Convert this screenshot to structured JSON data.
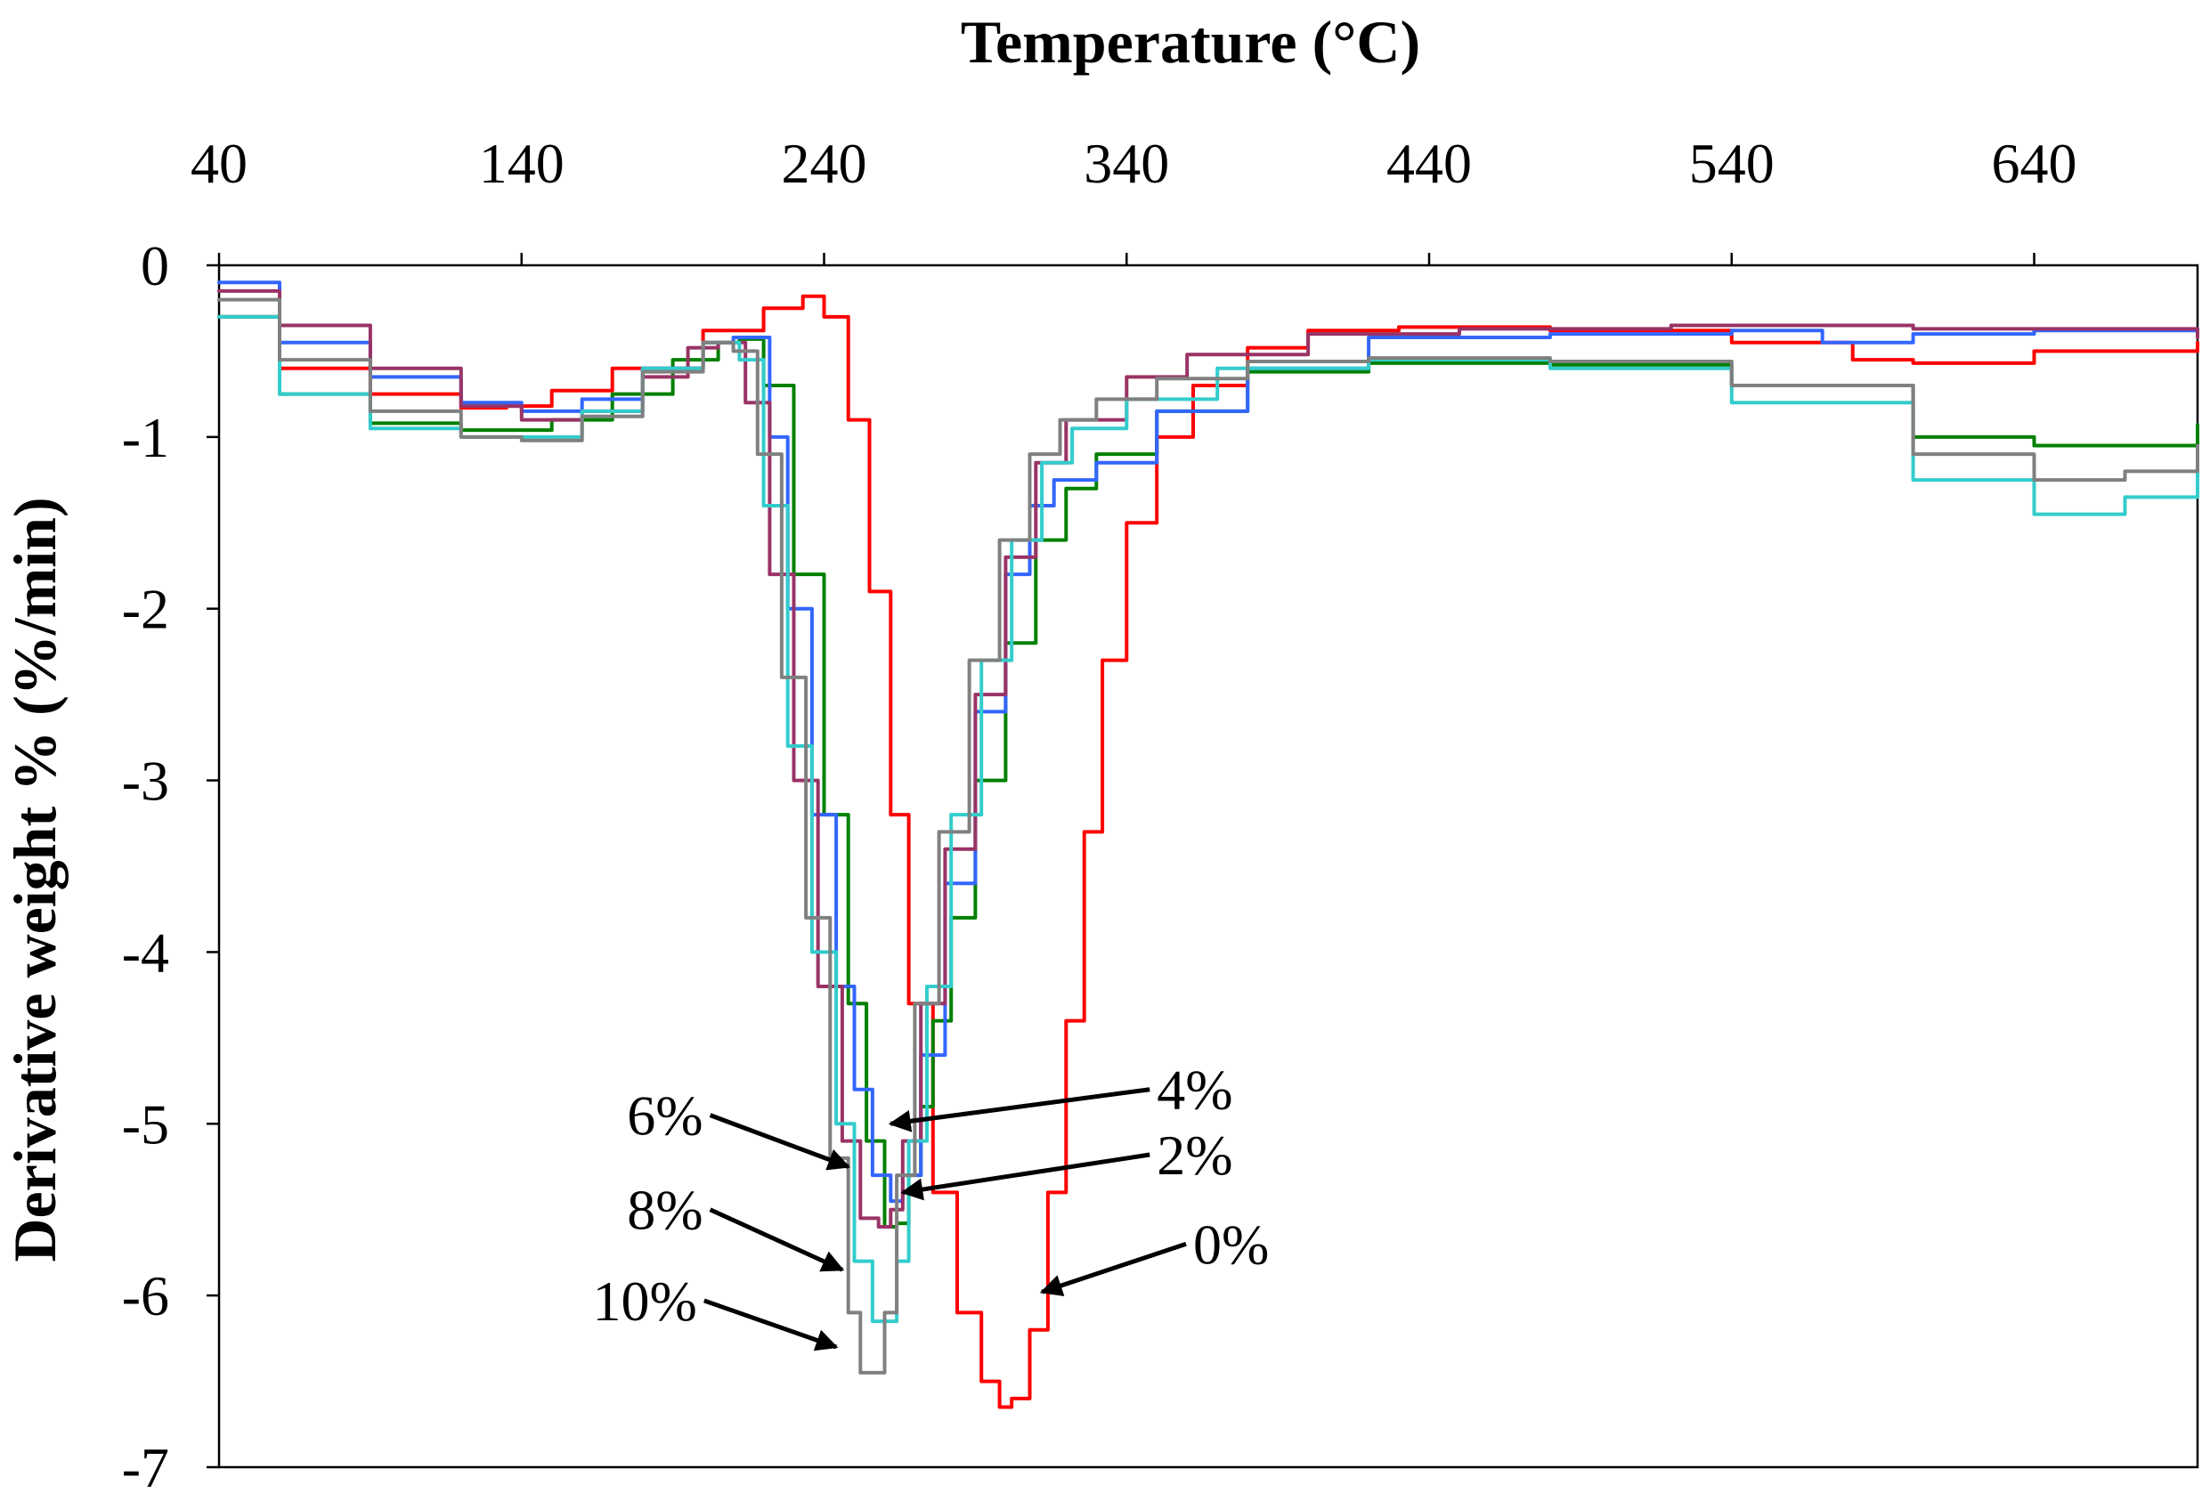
{
  "chart_data": {
    "type": "line",
    "title": "",
    "xlabel": "Temperature (°C)",
    "ylabel": "Derivative weight % (%/min)",
    "xlim": [
      40,
      694
    ],
    "ylim": [
      -7,
      0
    ],
    "x_axis_position": "top",
    "grid": false,
    "x_ticks": [
      40,
      140,
      240,
      340,
      440,
      540,
      640
    ],
    "y_ticks": [
      0,
      -1,
      -2,
      -3,
      -4,
      -5,
      -6,
      -7
    ],
    "series": [
      {
        "name": "0%",
        "color": "#ff0000",
        "x": [
          40,
          60,
          90,
          120,
          135,
          150,
          170,
          200,
          220,
          233,
          240,
          248,
          255,
          262,
          268,
          276,
          284,
          292,
          298,
          302,
          308,
          314,
          320,
          326,
          332,
          340,
          350,
          362,
          380,
          400,
          430,
          480,
          540,
          580,
          600,
          640,
          694
        ],
        "y": [
          -0.3,
          -0.6,
          -0.75,
          -0.83,
          -0.82,
          -0.73,
          -0.6,
          -0.38,
          -0.25,
          -0.18,
          -0.3,
          -0.9,
          -1.9,
          -3.2,
          -4.3,
          -5.4,
          -6.1,
          -6.5,
          -6.65,
          -6.6,
          -6.2,
          -5.4,
          -4.4,
          -3.3,
          -2.3,
          -1.5,
          -1.0,
          -0.7,
          -0.48,
          -0.38,
          -0.36,
          -0.38,
          -0.45,
          -0.55,
          -0.57,
          -0.5,
          -0.45
        ]
      },
      {
        "name": "2%",
        "color": "#008000",
        "x": [
          40,
          60,
          90,
          120,
          150,
          170,
          190,
          205,
          212,
          220,
          230,
          240,
          248,
          254,
          260,
          264,
          268,
          272,
          276,
          282,
          290,
          300,
          310,
          320,
          330,
          350,
          380,
          420,
          480,
          540,
          600,
          640,
          694
        ],
        "y": [
          -0.3,
          -0.75,
          -0.92,
          -0.96,
          -0.9,
          -0.75,
          -0.55,
          -0.45,
          -0.43,
          -0.7,
          -1.8,
          -3.2,
          -4.3,
          -5.1,
          -5.6,
          -5.58,
          -5.3,
          -4.9,
          -4.4,
          -3.8,
          -3.0,
          -2.2,
          -1.6,
          -1.3,
          -1.1,
          -0.85,
          -0.62,
          -0.57,
          -0.58,
          -0.7,
          -1.0,
          -1.05,
          -0.93
        ]
      },
      {
        "name": "4%",
        "color": "#3366ff",
        "x": [
          40,
          60,
          90,
          120,
          140,
          160,
          180,
          200,
          210,
          214,
          218,
          222,
          228,
          236,
          244,
          250,
          256,
          262,
          266,
          272,
          280,
          290,
          300,
          308,
          316,
          330,
          350,
          380,
          420,
          480,
          540,
          570,
          600,
          640,
          694
        ],
        "y": [
          -0.1,
          -0.45,
          -0.65,
          -0.8,
          -0.85,
          -0.78,
          -0.6,
          -0.45,
          -0.42,
          -0.42,
          -0.42,
          -1.0,
          -2.0,
          -3.2,
          -4.2,
          -4.8,
          -5.3,
          -5.45,
          -5.3,
          -4.6,
          -3.6,
          -2.6,
          -1.8,
          -1.4,
          -1.25,
          -1.15,
          -0.85,
          -0.6,
          -0.42,
          -0.4,
          -0.38,
          -0.45,
          -0.4,
          -0.38,
          -0.37
        ]
      },
      {
        "name": "6%",
        "color": "#993366",
        "x": [
          40,
          60,
          90,
          120,
          140,
          160,
          180,
          195,
          205,
          214,
          222,
          230,
          238,
          246,
          252,
          258,
          262,
          266,
          272,
          280,
          290,
          300,
          310,
          320,
          340,
          360,
          400,
          450,
          520,
          600,
          694
        ],
        "y": [
          -0.15,
          -0.35,
          -0.6,
          -0.82,
          -0.9,
          -0.85,
          -0.65,
          -0.48,
          -0.45,
          -0.8,
          -1.8,
          -3.0,
          -4.2,
          -5.1,
          -5.55,
          -5.6,
          -5.5,
          -5.1,
          -4.3,
          -3.4,
          -2.5,
          -1.7,
          -1.15,
          -0.9,
          -0.65,
          -0.52,
          -0.4,
          -0.37,
          -0.35,
          -0.37,
          -0.42
        ]
      },
      {
        "name": "8%",
        "color": "#33cccc",
        "x": [
          40,
          60,
          90,
          120,
          140,
          160,
          180,
          200,
          212,
          220,
          228,
          236,
          244,
          250,
          256,
          260,
          264,
          268,
          274,
          282,
          292,
          302,
          312,
          322,
          340,
          370,
          420,
          480,
          540,
          600,
          640,
          670,
          694
        ],
        "y": [
          -0.3,
          -0.75,
          -0.95,
          -1.0,
          -1.0,
          -0.85,
          -0.6,
          -0.45,
          -0.55,
          -1.4,
          -2.8,
          -4.0,
          -5.0,
          -5.8,
          -6.15,
          -6.15,
          -5.8,
          -5.1,
          -4.2,
          -3.2,
          -2.3,
          -1.6,
          -1.15,
          -0.95,
          -0.78,
          -0.6,
          -0.55,
          -0.6,
          -0.8,
          -1.25,
          -1.45,
          -1.35,
          -1.1
        ]
      },
      {
        "name": "10%",
        "color": "#808080",
        "x": [
          40,
          60,
          90,
          120,
          140,
          160,
          180,
          200,
          210,
          218,
          226,
          234,
          242,
          248,
          252,
          256,
          260,
          264,
          270,
          278,
          288,
          298,
          308,
          318,
          330,
          350,
          380,
          420,
          480,
          540,
          600,
          640,
          670,
          694
        ],
        "y": [
          -0.2,
          -0.55,
          -0.85,
          -1.0,
          -1.02,
          -0.88,
          -0.62,
          -0.45,
          -0.5,
          -1.1,
          -2.4,
          -3.8,
          -5.2,
          -6.1,
          -6.45,
          -6.45,
          -6.1,
          -5.3,
          -4.3,
          -3.3,
          -2.3,
          -1.6,
          -1.1,
          -0.9,
          -0.78,
          -0.66,
          -0.56,
          -0.54,
          -0.56,
          -0.7,
          -1.1,
          -1.25,
          -1.2,
          -1.05
        ]
      }
    ],
    "annotations": [
      {
        "label": "4%",
        "text_x": 350,
        "text_y": -4.8,
        "arrow_to": [
          262,
          -5.0
        ]
      },
      {
        "label": "6%",
        "text_x": 200,
        "text_y": -4.95,
        "arrow_to": [
          248,
          -5.25
        ]
      },
      {
        "label": "2%",
        "text_x": 350,
        "text_y": -5.18,
        "arrow_to": [
          266,
          -5.4
        ]
      },
      {
        "label": "8%",
        "text_x": 200,
        "text_y": -5.5,
        "arrow_to": [
          246,
          -5.85
        ]
      },
      {
        "label": "0%",
        "text_x": 362,
        "text_y": -5.7,
        "arrow_to": [
          312,
          -5.98
        ]
      },
      {
        "label": "10%",
        "text_x": 198,
        "text_y": -6.03,
        "arrow_to": [
          244,
          -6.3
        ]
      }
    ]
  }
}
